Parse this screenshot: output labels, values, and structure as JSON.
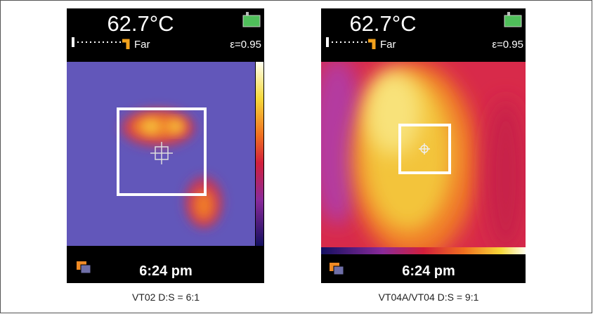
{
  "panels": [
    {
      "temperature": "62.7°C",
      "range": "Far",
      "emissivity": "ε=0.95",
      "time": "6:24 pm",
      "caption": "VT02 D:S = 6:1"
    },
    {
      "temperature": "62.7°C",
      "range": "Far",
      "emissivity": "ε=0.95",
      "time": "6:24 pm",
      "caption": "VT04A/VT04 D:S = 9:1"
    }
  ]
}
